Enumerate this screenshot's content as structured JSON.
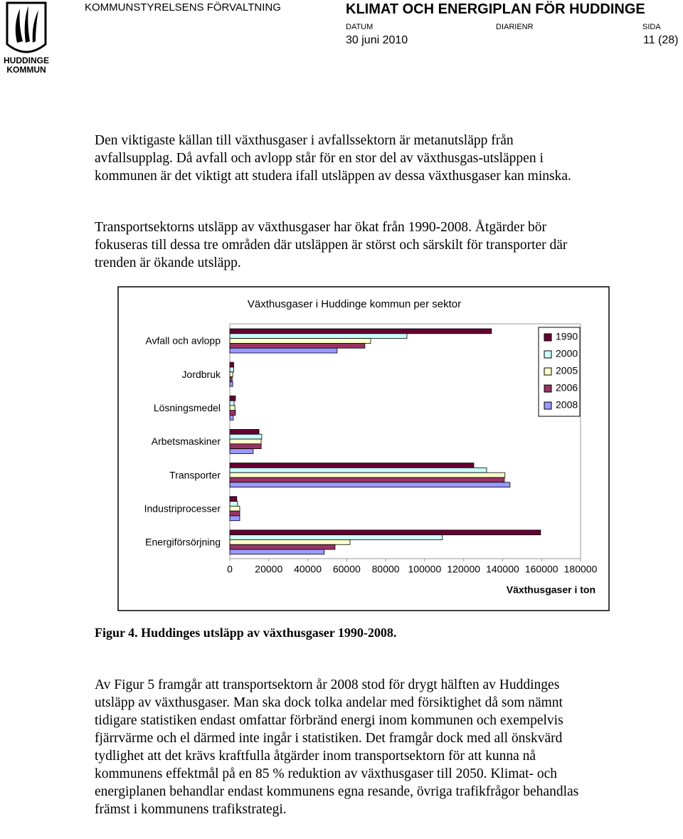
{
  "header": {
    "logo_text": "HUDDINGE KOMMUN",
    "department": "KOMMUNSTYRELSENS FÖRVALTNING",
    "doc_title": "KLIMAT OCH ENERGIPLAN FÖR HUDDINGE",
    "date_label": "DATUM",
    "ref_label": "DIARIENR",
    "page_label": "SIDA",
    "date": "30 juni 2010",
    "page": "11 (28)"
  },
  "paragraphs": [
    "Den viktigaste källan till växthusgaser i avfallssektorn är metanutsläpp från avfallsupplag. Då avfall och avlopp står för en stor del av växthusgas-utsläppen i kommunen är det viktigt att studera ifall utsläppen av dessa växthusgaser kan minska.",
    "Transportsektorns utsläpp av växthusgaser har ökat från 1990-2008. Åtgärder bör fokuseras till dessa tre områden där utsläppen är störst och särskilt för transporter där trenden är ökande utsläpp."
  ],
  "chart_data": {
    "type": "hbar",
    "title": "Växthusgaser i Huddinge kommun per sektor",
    "x_label": "Växthusgaser i ton",
    "categories": [
      "Avfall och avlopp",
      "Jordbruk",
      "Lösningsmedel",
      "Arbetsmaskiner",
      "Transporter",
      "Industriprocesser",
      "Energiförsörjning"
    ],
    "series": [
      {
        "name": "1990",
        "color": "#660033",
        "values": [
          134300,
          2000,
          2900,
          15000,
          125200,
          3600,
          159500
        ]
      },
      {
        "name": "2000",
        "color": "#ccffff",
        "values": [
          90900,
          2000,
          2200,
          16400,
          131800,
          4000,
          109100
        ]
      },
      {
        "name": "2005",
        "color": "#ffffcc",
        "values": [
          72300,
          1500,
          2600,
          16100,
          141200,
          5100,
          61700
        ]
      },
      {
        "name": "2006",
        "color": "#993366",
        "values": [
          69300,
          1200,
          2900,
          16100,
          140900,
          5100,
          54000
        ]
      },
      {
        "name": "2008",
        "color": "#9999ff",
        "values": [
          55100,
          1500,
          1800,
          12000,
          143800,
          5100,
          48500
        ]
      }
    ],
    "xlim": [
      0,
      180000
    ],
    "xticks": [
      0,
      20000,
      40000,
      60000,
      80000,
      100000,
      120000,
      140000,
      160000,
      180000
    ],
    "legend": "right"
  },
  "caption": "Figur 4. Huddinges utsläpp av växthusgaser 1990-2008.",
  "closing": "Av Figur 5 framgår att transportsektorn år 2008 stod för drygt hälften av Huddinges utsläpp av växthusgaser. Man ska dock tolka andelar med försiktighet då som nämnt tidigare statistiken endast omfattar förbränd energi inom kommunen och exempelvis fjärrvärme och el därmed inte ingår i statistiken. Det framgår dock med all önskvärd tydlighet att det krävs kraftfulla åtgärder inom transportsektorn för att kunna nå kommunens effektmål på en 85 % reduktion av växthusgaser till 2050. Klimat- och energiplanen behandlar endast kommunens egna resande, övriga trafikfrågor behandlas främst i kommunens trafikstrategi."
}
